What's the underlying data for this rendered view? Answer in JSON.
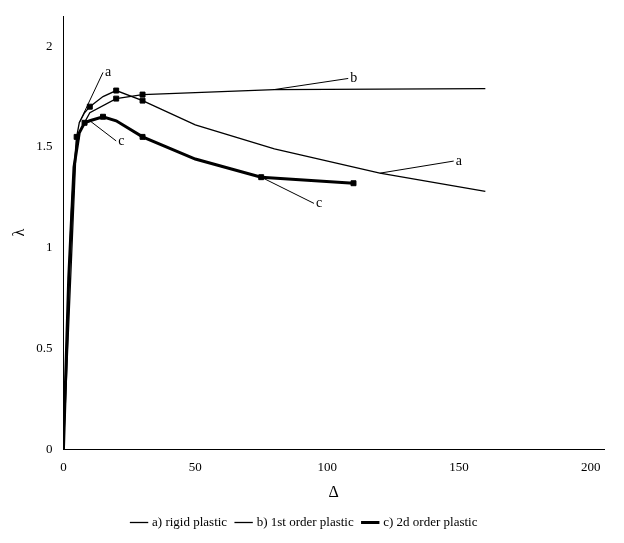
{
  "chart_data": {
    "type": "line",
    "xlabel": "Δ",
    "ylabel": "λ",
    "xlim": [
      0,
      205
    ],
    "ylim": [
      0,
      2.15
    ],
    "xticks": [
      0,
      50,
      100,
      150,
      200
    ],
    "yticks": [
      0,
      0.5,
      1,
      1.5,
      2
    ],
    "grid": false,
    "legend": "bottom",
    "series": [
      {
        "name": "a) rigid plastic",
        "color": "#000000",
        "line_style": "thin",
        "marker": "square",
        "x": [
          0,
          1,
          2,
          3,
          4,
          5,
          6,
          8,
          10,
          15,
          20,
          30,
          50,
          80,
          120,
          160
        ],
        "values": [
          0,
          0.45,
          0.85,
          1.18,
          1.4,
          1.55,
          1.62,
          1.67,
          1.7,
          1.75,
          1.78,
          1.73,
          1.61,
          1.49,
          1.37,
          1.28
        ],
        "markers": {
          "x": [
            5,
            10,
            20,
            30
          ],
          "y": [
            1.55,
            1.7,
            1.78,
            1.73
          ]
        }
      },
      {
        "name": "b) 1st order plastic",
        "color": "#000000",
        "line_style": "thin",
        "marker": "square",
        "x": [
          0,
          5,
          10,
          20,
          30,
          80,
          160
        ],
        "values": [
          0,
          1.55,
          1.67,
          1.74,
          1.76,
          1.785,
          1.79
        ],
        "markers": {
          "x": [
            20,
            30
          ],
          "y": [
            1.74,
            1.76
          ]
        }
      },
      {
        "name": "c) 2d order plastic",
        "color": "#000000",
        "line_style": "thick",
        "marker": "square",
        "x": [
          0,
          2,
          4,
          6,
          8,
          10,
          15,
          20,
          30,
          50,
          75,
          110
        ],
        "values": [
          0,
          0.85,
          1.4,
          1.57,
          1.62,
          1.63,
          1.65,
          1.63,
          1.55,
          1.44,
          1.35,
          1.32
        ],
        "markers": {
          "x": [
            8,
            15,
            30,
            75,
            110
          ],
          "y": [
            1.62,
            1.65,
            1.55,
            1.35,
            1.32
          ]
        }
      }
    ],
    "annotations": [
      {
        "text": "a",
        "xy": [
          6,
          1.62
        ],
        "xytext": [
          15,
          1.87
        ]
      },
      {
        "text": "b",
        "xy": [
          80,
          1.785
        ],
        "xytext": [
          108,
          1.84
        ]
      },
      {
        "text": "c",
        "xy": [
          10,
          1.63
        ],
        "xytext": [
          20,
          1.53
        ]
      },
      {
        "text": "c",
        "xy": [
          75,
          1.35
        ],
        "xytext": [
          95,
          1.22
        ]
      },
      {
        "text": "a",
        "xy": [
          120,
          1.37
        ],
        "xytext": [
          148,
          1.43
        ]
      }
    ]
  }
}
